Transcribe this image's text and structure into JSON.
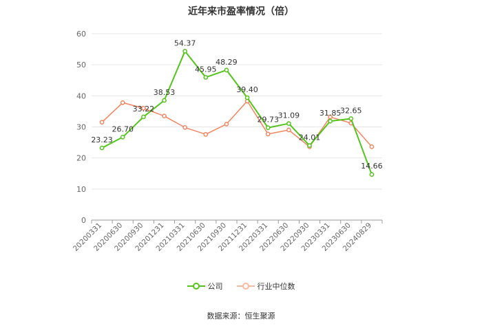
{
  "chart_data": {
    "type": "line",
    "title": "近年来市盈率情况（倍）",
    "categories": [
      "20200331",
      "20200630",
      "20200930",
      "20201231",
      "20210331",
      "20210630",
      "20210930",
      "20211231",
      "20220331",
      "20220630",
      "20220930",
      "20230331",
      "20230630",
      "20240829"
    ],
    "series": [
      {
        "name": "公司",
        "color": "#52c41a",
        "values": [
          23.23,
          26.7,
          33.22,
          38.53,
          54.37,
          45.95,
          48.29,
          39.4,
          29.73,
          31.09,
          24.01,
          31.85,
          32.65,
          14.66
        ],
        "labels": [
          "23.23",
          "26.70",
          "33.22",
          "38.53",
          "54.37",
          "45.95",
          "48.29",
          "39.40",
          "29.73",
          "31.09",
          "24.01",
          "31.85",
          "32.65",
          "14.66"
        ]
      },
      {
        "name": "行业中位数",
        "color": "#f4845f",
        "values": [
          31.5,
          37.8,
          36.0,
          33.5,
          29.8,
          27.6,
          30.9,
          38.3,
          27.7,
          29.0,
          23.6,
          33.2,
          31.2,
          23.6
        ]
      }
    ],
    "ylim": [
      0,
      60
    ],
    "yticks": [
      0,
      10,
      20,
      30,
      40,
      50,
      60
    ],
    "grid": true,
    "legend_position": "bottom-center",
    "source_note": "数据来源：恒生聚源"
  }
}
